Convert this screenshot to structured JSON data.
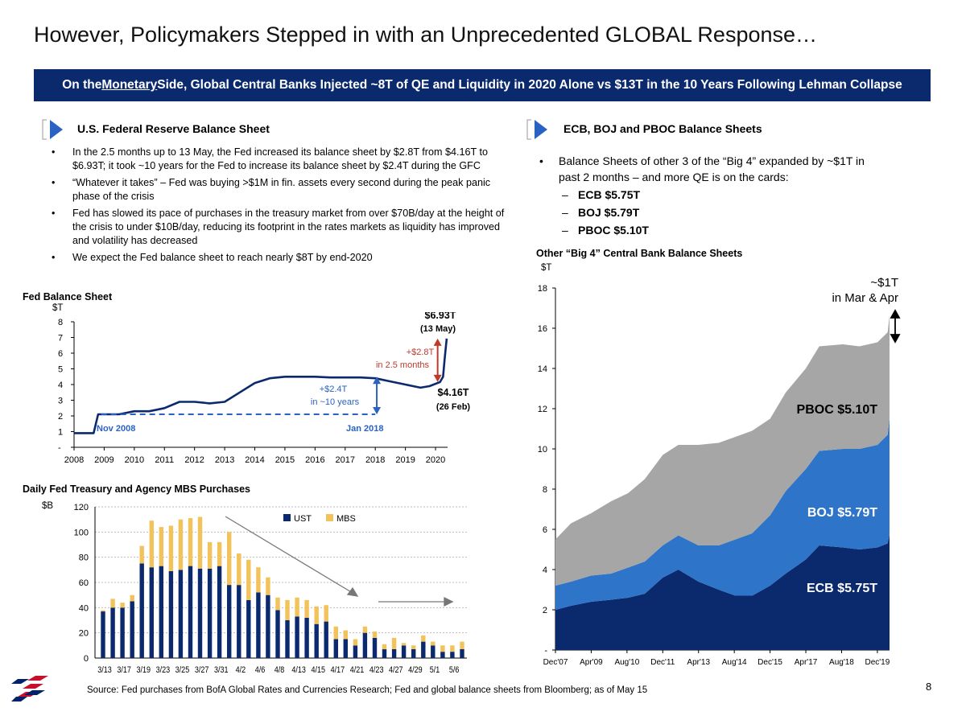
{
  "title": "However, Policymakers Stepped in with an Unprecedented GLOBAL Response…",
  "banner": {
    "pre": "On the ",
    "underlined": "Monetary",
    "post": " Side, Global Central Banks Injected ~8T of QE and Liquidity in 2020 Alone vs $13T in the 10 Years Following Lehman Collapse"
  },
  "left": {
    "section_title": "U.S. Federal Reserve Balance Sheet",
    "bullets": [
      "In the 2.5 months up to 13 May, the Fed increased its balance sheet by $2.8T from $4.16T to $6.93T; it took ~10 years for the Fed to increase its balance sheet by $2.4T during the GFC",
      "“Whatever it takes” – Fed was buying >$1M in fin. assets every second during the peak panic phase of the crisis",
      "Fed has slowed its pace of purchases in the treasury market from over $70B/day at the height of the crisis to under $10B/day, reducing its footprint in the rates markets as liquidity has improved and volatility has decreased",
      "We expect the Fed balance sheet to reach nearly $8T by end-2020"
    ]
  },
  "right": {
    "section_title": "ECB, BOJ and PBOC Balance Sheets",
    "bullet": "Balance Sheets of other 3 of the “Big 4” expanded by ~$1T in past 2 months – and more QE is on the cards:",
    "sub_bullets": [
      "ECB $5.75T",
      "BOJ $5.79T",
      "PBOC $5.10T"
    ]
  },
  "chart_data": [
    {
      "id": "fed",
      "type": "line",
      "title": "Fed Balance Sheet",
      "ylabel": "$T",
      "x": [
        2008,
        2008.65,
        2008.8,
        2009,
        2009.5,
        2010,
        2010.5,
        2011,
        2011.5,
        2012,
        2012.5,
        2013,
        2013.5,
        2014,
        2014.5,
        2015,
        2015.5,
        2016,
        2016.5,
        2017,
        2017.5,
        2018,
        2018.5,
        2019,
        2019.5,
        2019.8,
        2020.15,
        2020.25,
        2020.3,
        2020.37
      ],
      "values": [
        0.9,
        0.9,
        2.1,
        2.1,
        2.1,
        2.3,
        2.3,
        2.5,
        2.9,
        2.9,
        2.8,
        2.9,
        3.5,
        4.1,
        4.4,
        4.5,
        4.5,
        4.5,
        4.45,
        4.45,
        4.45,
        4.4,
        4.2,
        4.0,
        3.8,
        3.9,
        4.16,
        4.5,
        5.6,
        6.93
      ],
      "xticks": [
        "2008",
        "2009",
        "2010",
        "2011",
        "2012",
        "2013",
        "2014",
        "2015",
        "2016",
        "2017",
        "2018",
        "2019",
        "2020"
      ],
      "yticks": [
        "-",
        "1",
        "2",
        "3",
        "4",
        "5",
        "6",
        "7",
        "8"
      ],
      "ylim": [
        0,
        8
      ],
      "annotations": {
        "peak_value": "$6.93T",
        "peak_date": "(13 May)",
        "feb_value": "$4.16T",
        "feb_date": "(26 Feb)",
        "increase_recent": "+$2.8T",
        "increase_recent_period": "in 2.5 months",
        "increase_gfc": "+$2.4T",
        "increase_gfc_period": "in ~10 years",
        "start_label": "Nov 2008",
        "end_label": "Jan 2018"
      },
      "colors": {
        "line": "#0b2a6e",
        "recent": "#c0392b",
        "gfc": "#2a62c4"
      }
    },
    {
      "id": "mbs",
      "type": "bar",
      "stacked": true,
      "title": "Daily Fed Treasury and Agency MBS Purchases",
      "ylabel": "$B",
      "ylim": [
        0,
        120
      ],
      "yticks": [
        "0",
        "20",
        "40",
        "60",
        "80",
        "100",
        "120"
      ],
      "xticks": [
        "3/13",
        "3/17",
        "3/19",
        "3/23",
        "3/25",
        "3/27",
        "3/31",
        "4/2",
        "4/6",
        "4/8",
        "4/13",
        "4/15",
        "4/17",
        "4/21",
        "4/23",
        "4/27",
        "4/29",
        "5/1",
        "5/6"
      ],
      "legend": [
        "UST",
        "MBS"
      ],
      "series": [
        {
          "name": "UST",
          "color": "#0b2a6e",
          "values": [
            37,
            40,
            40,
            45,
            75,
            72,
            73,
            69,
            70,
            73,
            71,
            71,
            73,
            58,
            58,
            46,
            52,
            50,
            38,
            30,
            33,
            32,
            27,
            29,
            15,
            15,
            10,
            20,
            16,
            7,
            7,
            10,
            7,
            13,
            10,
            5,
            5,
            7
          ]
        },
        {
          "name": "MBS",
          "color": "#f2c35b",
          "values": [
            1,
            7,
            4,
            5,
            14,
            37,
            31,
            36,
            40,
            38,
            41,
            21,
            19,
            42,
            25,
            32,
            20,
            14,
            10,
            16,
            15,
            14,
            14,
            13,
            10,
            7,
            5,
            5,
            5,
            4,
            9,
            2,
            3,
            5,
            3,
            5,
            5,
            6
          ]
        }
      ]
    },
    {
      "id": "big4",
      "type": "area",
      "stacked": true,
      "title": "Other “Big 4” Central Bank Balance Sheets",
      "ylabel": "$T",
      "ylim": [
        0,
        18
      ],
      "yticks": [
        "-",
        "2",
        "4",
        "6",
        "8",
        "10",
        "12",
        "14",
        "16",
        "18"
      ],
      "xticks": [
        "Dec'07",
        "Apr'09",
        "Aug'10",
        "Dec'11",
        "Apr'13",
        "Aug'14",
        "Dec'15",
        "Apr'17",
        "Aug'18",
        "Dec'19"
      ],
      "x": [
        2007.92,
        2008.5,
        2009.25,
        2010,
        2010.63,
        2011.25,
        2011.92,
        2012.5,
        2013.25,
        2014,
        2014.63,
        2015.25,
        2015.92,
        2016.5,
        2017.25,
        2017.75,
        2018.63,
        2019.25,
        2019.92,
        2020.3,
        2020.37
      ],
      "series": [
        {
          "name": "ECB",
          "label": "ECB $5.75T",
          "color": "#0b2a6e",
          "values": [
            2.0,
            2.2,
            2.4,
            2.5,
            2.6,
            2.8,
            3.6,
            4.0,
            3.4,
            3.0,
            2.7,
            2.7,
            3.2,
            3.8,
            4.5,
            5.2,
            5.1,
            5.0,
            5.1,
            5.3,
            5.75
          ]
        },
        {
          "name": "BOJ",
          "label": "BOJ $5.79T",
          "color": "#2e74c9",
          "values": [
            1.2,
            1.2,
            1.3,
            1.3,
            1.5,
            1.6,
            1.6,
            1.7,
            1.8,
            2.2,
            2.8,
            3.1,
            3.5,
            4.1,
            4.5,
            4.7,
            4.9,
            5.0,
            5.1,
            5.4,
            5.79
          ]
        },
        {
          "name": "PBOC",
          "label": "PBOC $5.10T",
          "color": "#a6a6a6",
          "values": [
            2.3,
            2.9,
            3.1,
            3.6,
            3.7,
            4.1,
            4.5,
            4.5,
            5.0,
            5.1,
            5.1,
            5.1,
            4.8,
            4.9,
            5.0,
            5.2,
            5.2,
            5.1,
            5.1,
            5.1,
            5.1
          ]
        }
      ],
      "annotation": "~$1T",
      "annotation2": "in Mar & Apr"
    }
  ],
  "footer": {
    "source": "Source: Fed purchases from BofA Global Rates and Currencies Research;  Fed and global balance sheets from Bloomberg; as of May 15",
    "page": "8"
  }
}
